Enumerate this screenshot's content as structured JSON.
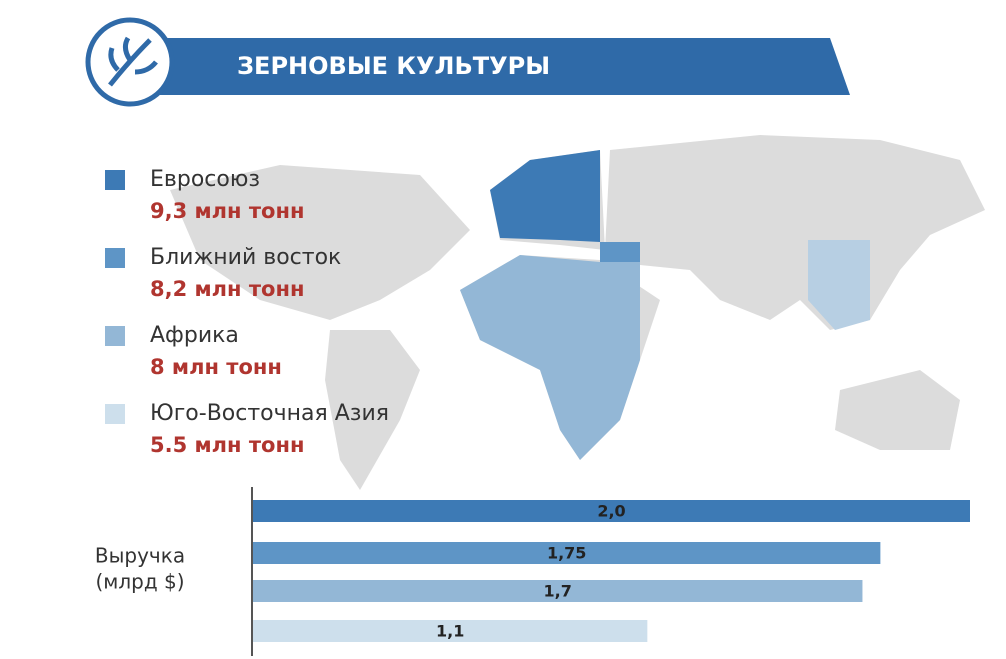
{
  "header": {
    "title": "ЗЕРНОВЫЕ КУЛЬТУРЫ"
  },
  "legend": [
    {
      "name": "Евросоюз",
      "volume": "9,3 млн тонн",
      "color": "#3d7ab5"
    },
    {
      "name": "Ближний восток",
      "volume": "8,2 млн тонн",
      "color": "#5e95c6"
    },
    {
      "name": "Африка",
      "volume": "8 млн тонн",
      "color": "#93b7d6"
    },
    {
      "name": "Юго-Восточная Азия",
      "volume": "5.5 млн тонн",
      "color": "#cddfec"
    }
  ],
  "chart_data": {
    "type": "bar",
    "orientation": "horizontal",
    "ylabel": [
      "Выручка",
      "(млрд $)"
    ],
    "values": [
      2.0,
      1.75,
      1.7,
      1.1
    ],
    "value_labels": [
      "2,0",
      "1,75",
      "1,7",
      "1,1"
    ],
    "colors": [
      "#3d7ab5",
      "#5e95c6",
      "#93b7d6",
      "#cddfec"
    ],
    "xlim": [
      0,
      2.0
    ]
  }
}
